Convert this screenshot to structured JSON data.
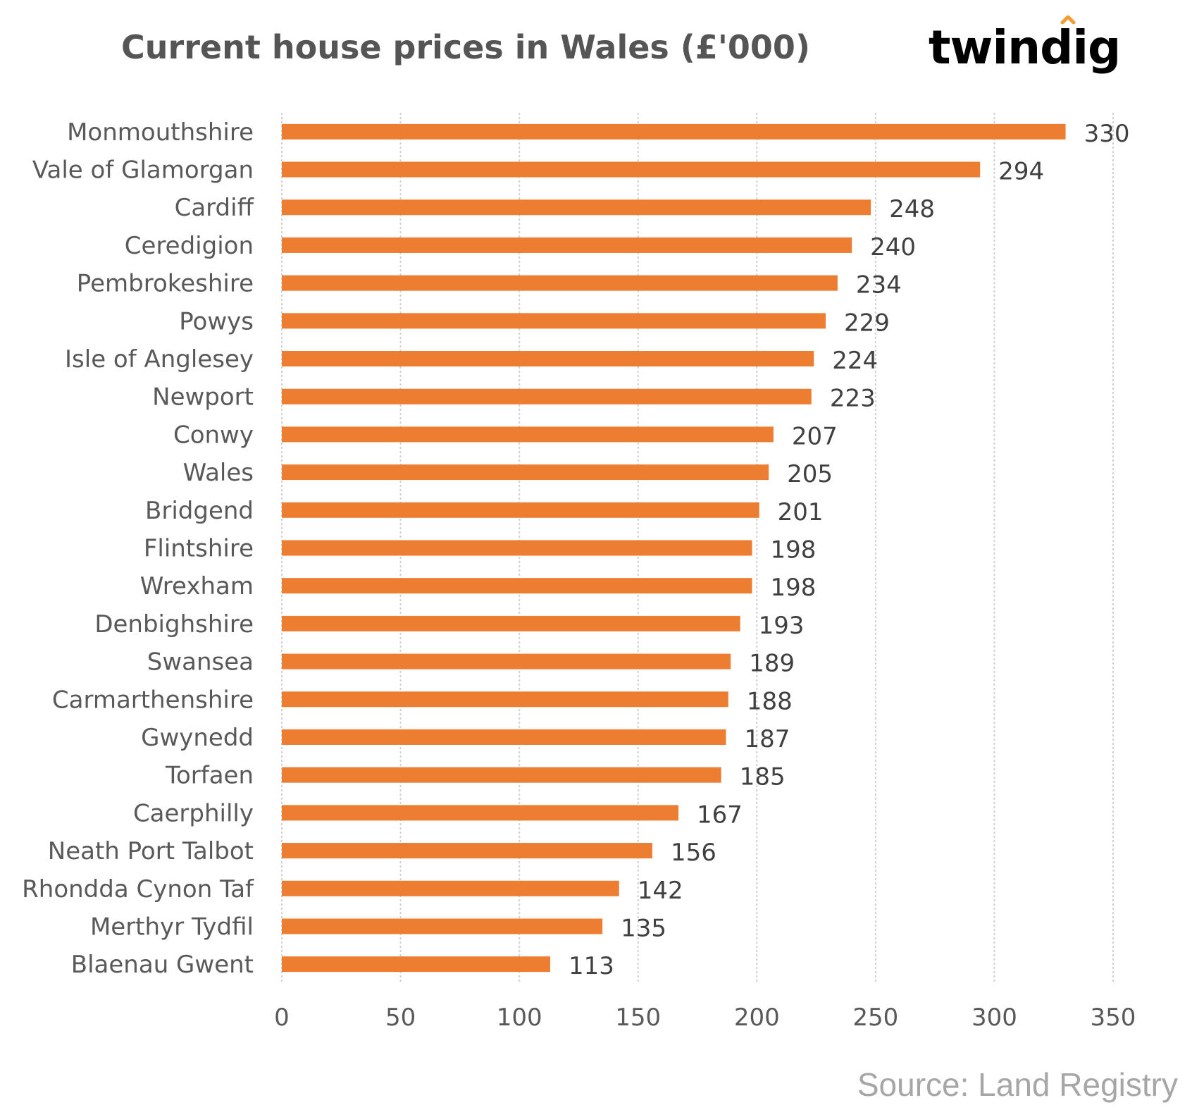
{
  "brand": {
    "name": "twindig",
    "text_color": "#2d1b3d",
    "accent_color": "#f39c33"
  },
  "source": "Source: Land Registry",
  "chart_data": {
    "type": "bar",
    "orientation": "horizontal",
    "title": "Current house prices in Wales (£'000)",
    "categories": [
      "Monmouthshire",
      "Vale of Glamorgan",
      "Cardiff",
      "Ceredigion",
      "Pembrokeshire",
      "Powys",
      "Isle of Anglesey",
      "Newport",
      "Conwy",
      "Wales",
      "Bridgend",
      "Flintshire",
      "Wrexham",
      "Denbighshire",
      "Swansea",
      "Carmarthenshire",
      "Gwynedd",
      "Torfaen",
      "Caerphilly",
      "Neath Port Talbot",
      "Rhondda Cynon Taf",
      "Merthyr Tydfil",
      "Blaenau Gwent"
    ],
    "values": [
      330,
      294,
      248,
      240,
      234,
      229,
      224,
      223,
      207,
      205,
      201,
      198,
      198,
      193,
      189,
      188,
      187,
      185,
      167,
      156,
      142,
      135,
      113
    ],
    "data_labels": [
      "330",
      "294",
      "248",
      "240",
      "234",
      "229",
      "224",
      "223",
      "207",
      "205",
      "201",
      "198",
      "198",
      "193",
      "189",
      "188",
      "187",
      "185",
      "167",
      "156",
      "142",
      "135",
      "113"
    ],
    "xlim": [
      0,
      350
    ],
    "xticks": [
      0,
      50,
      100,
      150,
      200,
      250,
      300,
      350
    ],
    "xtick_labels": [
      "0",
      "50",
      "100",
      "150",
      "200",
      "250",
      "300",
      "350"
    ],
    "grid": true,
    "bar_color": "#ed7d31",
    "grid_color": "#d0d0d0"
  }
}
